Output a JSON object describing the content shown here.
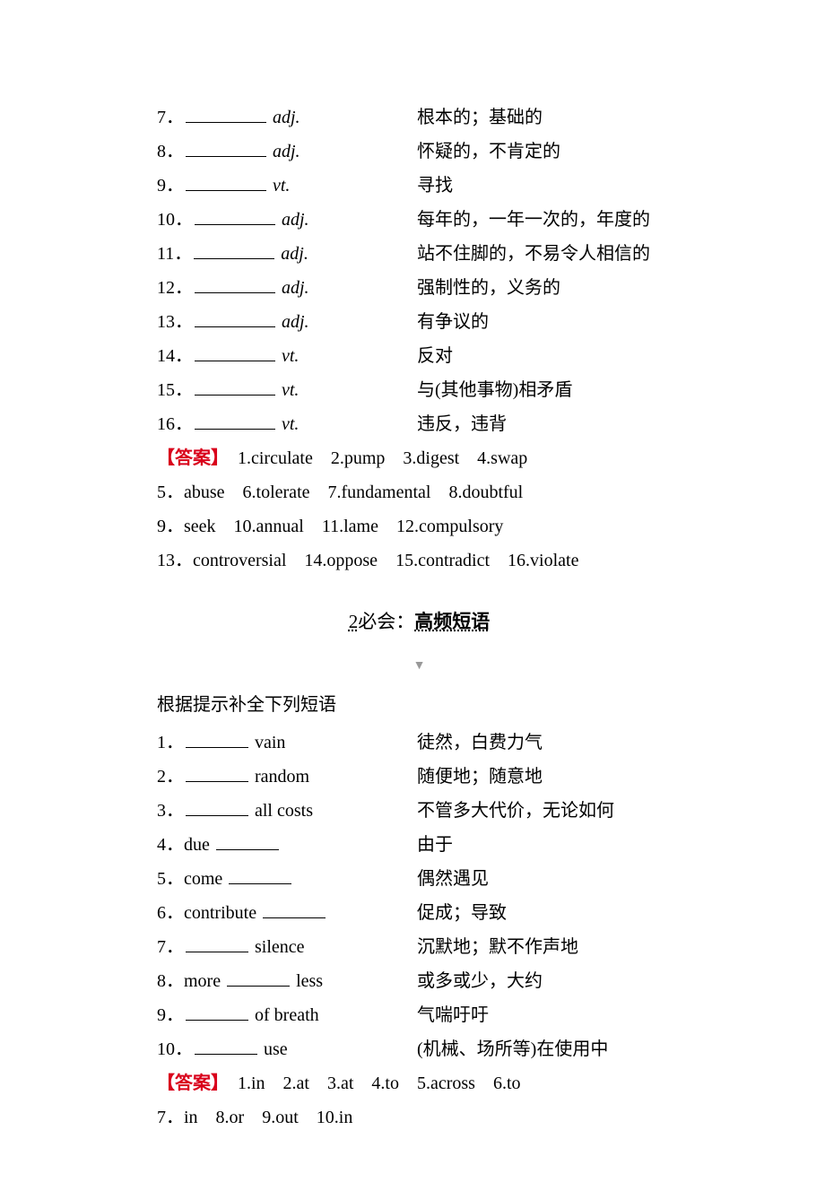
{
  "vocab": {
    "items": [
      {
        "num": "7．",
        "pos": "adj.",
        "def": "根本的；基础的"
      },
      {
        "num": "8．",
        "pos": "adj.",
        "def": "怀疑的，不肯定的"
      },
      {
        "num": "9．",
        "pos": "vt.",
        "def": "寻找"
      },
      {
        "num": "10．",
        "pos": "adj.",
        "def": "每年的，一年一次的，年度的"
      },
      {
        "num": "11．",
        "pos": "adj.",
        "def": "站不住脚的，不易令人相信的"
      },
      {
        "num": "12．",
        "pos": "adj.",
        "def": "强制性的，义务的"
      },
      {
        "num": "13．",
        "pos": "adj.",
        "def": "有争议的"
      },
      {
        "num": "14．",
        "pos": "vt.",
        "def": "反对"
      },
      {
        "num": "15．",
        "pos": "vt.",
        "def": "与(其他事物)相矛盾"
      },
      {
        "num": "16．",
        "pos": "vt.",
        "def": "违反，违背"
      }
    ],
    "ans_label": "【答案】",
    "ans_l1": "　1.circulate　2.pump　3.digest　4.swap",
    "ans_l2": "5．abuse　6.tolerate　7.fundamental　8.doubtful",
    "ans_l3": "9．seek　10.annual　11.lame　12.compulsory",
    "ans_l4": "13．controversial　14.oppose　15.contradict　16.violate"
  },
  "section2": {
    "num": "2",
    "prefix": "必会：",
    "title": "高频短语",
    "intro": "根据提示补全下列短语"
  },
  "phrases": {
    "items": [
      {
        "num": "1．",
        "before": "",
        "after": " vain",
        "def": "徒然，白费力气"
      },
      {
        "num": "2．",
        "before": "",
        "after": " random",
        "def": "随便地；随意地"
      },
      {
        "num": "3．",
        "before": "",
        "after": " all costs",
        "def": "不管多大代价，无论如何"
      },
      {
        "num": "4．",
        "before": "due ",
        "after": "",
        "def": "由于"
      },
      {
        "num": "5．",
        "before": "come ",
        "after": "",
        "def": "偶然遇见"
      },
      {
        "num": "6．",
        "before": "contribute ",
        "after": "",
        "def": "促成；导致"
      },
      {
        "num": "7．",
        "before": "",
        "after": " silence",
        "def": "沉默地；默不作声地"
      },
      {
        "num": "8．",
        "before": "more ",
        "after": " less",
        "def": "或多或少，大约"
      },
      {
        "num": "9．",
        "before": "",
        "after": " of breath",
        "def": "气喘吁吁"
      },
      {
        "num": "10．",
        "before": "",
        "after": " use",
        "def": "(机械、场所等)在使用中"
      }
    ],
    "ans_label": "【答案】",
    "ans_l1": "　1.in　2.at　3.at　4.to　5.across　6.to",
    "ans_l2": "7．in　8.or　9.out　10.in"
  }
}
